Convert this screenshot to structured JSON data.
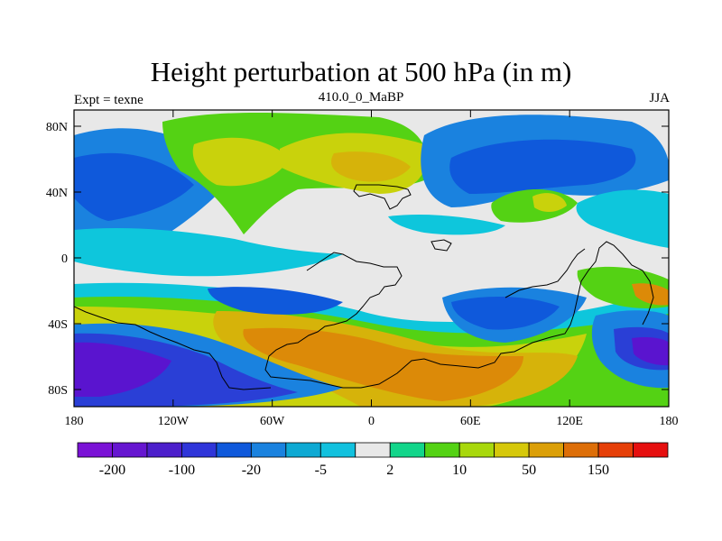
{
  "title": "Height perturbation at 500 hPa (in m)",
  "left_string": "Expt = texne",
  "center_string": "410.0_0_MaBP",
  "right_string": "JJA",
  "lat_labels": [
    "80N",
    "40N",
    "0",
    "40S",
    "80S"
  ],
  "lon_labels": [
    "180",
    "120W",
    "60W",
    "0",
    "60E",
    "120E",
    "180"
  ],
  "colorbar": {
    "colors": [
      "#7a12d6",
      "#6616d0",
      "#4c1fcb",
      "#2f35d9",
      "#0f59db",
      "#1a82df",
      "#0ea9d3",
      "#12c1de",
      "#e8e8e8",
      "#12d58a",
      "#54d214",
      "#a8d80c",
      "#d6c80a",
      "#db9f08",
      "#dd6e08",
      "#e63f08",
      "#e60f0f"
    ],
    "labels": [
      "-200",
      "-100",
      "-20",
      "-5",
      "2",
      "10",
      "50",
      "150"
    ]
  },
  "map_colors": {
    "background": "#e8e8e8",
    "neg_deep": "#5a14cf",
    "neg_dark": "#2a3fd6",
    "neg_mid": "#1a82df",
    "neg_light": "#0ec6dc",
    "pos_light": "#14d68c",
    "pos_green": "#54d214",
    "pos_yellow": "#c9d20c",
    "pos_gold": "#d6b30a",
    "pos_orange": "#dc8a08"
  }
}
